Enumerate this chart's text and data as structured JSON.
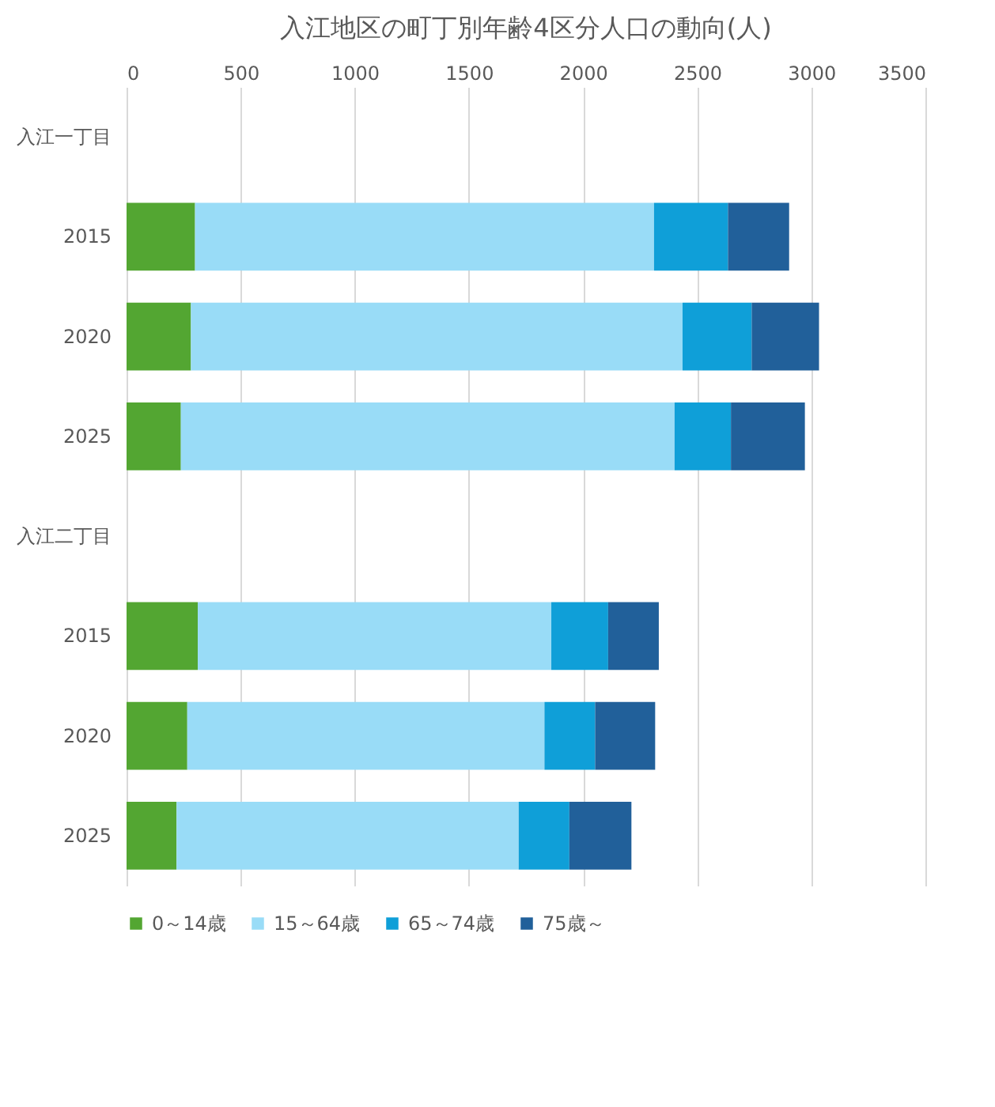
{
  "chart_data": {
    "type": "bar",
    "orientation": "horizontal",
    "stacked": true,
    "title": "入江地区の町丁別年齢4区分人口の動向(人)",
    "categories": [
      "入江一丁目",
      "2015",
      "2020",
      "2025",
      "入江二丁目",
      "2015",
      "2020",
      "2025"
    ],
    "series": [
      {
        "name": "0～14歳",
        "color": "#53a632",
        "values": [
          null,
          300,
          282,
          238,
          null,
          312,
          266,
          219
        ]
      },
      {
        "name": "15～64歳",
        "color": "#99dcf7",
        "values": [
          null,
          2011,
          2154,
          2163,
          null,
          1549,
          1565,
          1499
        ]
      },
      {
        "name": "65～74歳",
        "color": "#0f9fd8",
        "values": [
          null,
          324,
          303,
          247,
          null,
          249,
          222,
          222
        ]
      },
      {
        "name": "75歳～",
        "color": "#21609a",
        "values": [
          null,
          268,
          295,
          324,
          null,
          222,
          263,
          272
        ]
      }
    ],
    "xlim": [
      0,
      3500
    ],
    "xticks": [
      0,
      500,
      1000,
      1500,
      2000,
      2500,
      3000,
      3500
    ],
    "grid": "x",
    "legend": "bottom"
  }
}
